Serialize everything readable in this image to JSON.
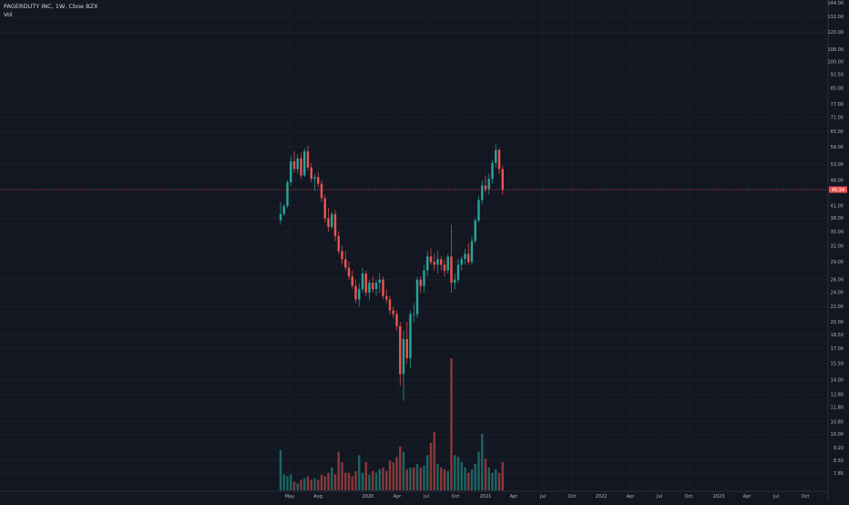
{
  "legend": {
    "title": "PAGERDUTY INC, 1W, Cboe BZX",
    "volume_label": "Vol"
  },
  "current_price_label": "45.34",
  "colors": {
    "background": "#131722",
    "grid": "#1e222d",
    "up": "#26a69a",
    "down": "#ef5350",
    "text": "#b2b5be",
    "price_line": "#ef5350"
  },
  "chart_data": {
    "type": "candlestick",
    "title": "PAGERDUTY INC, 1W, Cboe BZX",
    "y_scale": "log",
    "ylim": [
      7.0,
      144.0
    ],
    "y_ticks": [
      "144.00",
      "132.00",
      "120.00",
      "108.00",
      "100.00",
      "92.50",
      "85.00",
      "77.00",
      "71.00",
      "65.00",
      "59.00",
      "53.00",
      "48.00",
      "41.00",
      "38.00",
      "35.00",
      "32.00",
      "29.00",
      "26.00",
      "24.00",
      "22.00",
      "20.00",
      "18.50",
      "17.00",
      "15.50",
      "14.00",
      "12.80",
      "11.80",
      "10.80",
      "10.00",
      "9.20",
      "8.50",
      "7.85"
    ],
    "x_ticks": [
      "May",
      "Aug",
      "2020",
      "Apr",
      "Jul",
      "Oct",
      "2021",
      "Apr",
      "Jul",
      "Oct",
      "2022",
      "Apr",
      "Jul",
      "Oct",
      "2023",
      "Apr",
      "Jul",
      "Oct"
    ],
    "current_price": 45.34,
    "candles": [
      {
        "o": 37.5,
        "h": 42.0,
        "l": 36.5,
        "c": 39.0
      },
      {
        "o": 39.0,
        "h": 41.5,
        "l": 38.5,
        "c": 41.0
      },
      {
        "o": 41.0,
        "h": 48.0,
        "l": 40.5,
        "c": 47.5
      },
      {
        "o": 47.5,
        "h": 56.0,
        "l": 46.5,
        "c": 54.0
      },
      {
        "o": 54.0,
        "h": 57.5,
        "l": 50.5,
        "c": 51.5
      },
      {
        "o": 51.5,
        "h": 56.5,
        "l": 50.0,
        "c": 55.0
      },
      {
        "o": 55.0,
        "h": 57.0,
        "l": 48.5,
        "c": 49.5
      },
      {
        "o": 49.5,
        "h": 58.5,
        "l": 49.0,
        "c": 57.5
      },
      {
        "o": 57.5,
        "h": 59.5,
        "l": 51.0,
        "c": 52.0
      },
      {
        "o": 52.0,
        "h": 53.5,
        "l": 47.5,
        "c": 48.5
      },
      {
        "o": 48.5,
        "h": 50.0,
        "l": 45.0,
        "c": 49.0
      },
      {
        "o": 49.0,
        "h": 50.5,
        "l": 46.0,
        "c": 47.0
      },
      {
        "o": 47.0,
        "h": 48.0,
        "l": 42.0,
        "c": 43.0
      },
      {
        "o": 43.0,
        "h": 44.0,
        "l": 37.0,
        "c": 38.0
      },
      {
        "o": 38.0,
        "h": 40.5,
        "l": 35.0,
        "c": 36.0
      },
      {
        "o": 36.0,
        "h": 39.5,
        "l": 35.5,
        "c": 39.0
      },
      {
        "o": 39.0,
        "h": 40.0,
        "l": 33.0,
        "c": 34.0
      },
      {
        "o": 34.0,
        "h": 35.0,
        "l": 30.5,
        "c": 31.0
      },
      {
        "o": 31.0,
        "h": 32.0,
        "l": 28.5,
        "c": 29.5
      },
      {
        "o": 29.5,
        "h": 31.0,
        "l": 27.5,
        "c": 28.0
      },
      {
        "o": 28.0,
        "h": 29.0,
        "l": 26.0,
        "c": 26.5
      },
      {
        "o": 26.5,
        "h": 27.5,
        "l": 24.5,
        "c": 25.0
      },
      {
        "o": 25.0,
        "h": 26.0,
        "l": 22.5,
        "c": 23.0
      },
      {
        "o": 23.0,
        "h": 25.5,
        "l": 22.0,
        "c": 24.5
      },
      {
        "o": 24.5,
        "h": 28.0,
        "l": 24.0,
        "c": 27.0
      },
      {
        "o": 27.0,
        "h": 27.5,
        "l": 23.5,
        "c": 24.0
      },
      {
        "o": 24.0,
        "h": 26.0,
        "l": 23.0,
        "c": 25.5
      },
      {
        "o": 25.5,
        "h": 26.5,
        "l": 24.0,
        "c": 24.5
      },
      {
        "o": 24.5,
        "h": 26.0,
        "l": 23.5,
        "c": 25.5
      },
      {
        "o": 25.5,
        "h": 27.0,
        "l": 24.0,
        "c": 26.0
      },
      {
        "o": 26.0,
        "h": 26.5,
        "l": 23.0,
        "c": 23.5
      },
      {
        "o": 23.5,
        "h": 24.5,
        "l": 22.5,
        "c": 23.0
      },
      {
        "o": 23.0,
        "h": 23.5,
        "l": 21.0,
        "c": 21.5
      },
      {
        "o": 21.5,
        "h": 22.0,
        "l": 20.5,
        "c": 21.0
      },
      {
        "o": 21.0,
        "h": 21.5,
        "l": 19.0,
        "c": 19.5
      },
      {
        "o": 19.5,
        "h": 20.0,
        "l": 13.5,
        "c": 14.5
      },
      {
        "o": 14.5,
        "h": 19.0,
        "l": 12.3,
        "c": 18.0
      },
      {
        "o": 18.0,
        "h": 20.0,
        "l": 15.5,
        "c": 16.0
      },
      {
        "o": 16.0,
        "h": 21.5,
        "l": 15.0,
        "c": 21.0
      },
      {
        "o": 21.0,
        "h": 22.5,
        "l": 20.0,
        "c": 21.0
      },
      {
        "o": 21.0,
        "h": 26.5,
        "l": 20.5,
        "c": 26.0
      },
      {
        "o": 26.0,
        "h": 26.5,
        "l": 24.0,
        "c": 25.0
      },
      {
        "o": 25.0,
        "h": 28.5,
        "l": 24.0,
        "c": 27.5
      },
      {
        "o": 27.5,
        "h": 31.0,
        "l": 26.5,
        "c": 30.0
      },
      {
        "o": 30.0,
        "h": 31.5,
        "l": 28.5,
        "c": 29.0
      },
      {
        "o": 29.0,
        "h": 30.5,
        "l": 27.5,
        "c": 28.5
      },
      {
        "o": 28.5,
        "h": 31.0,
        "l": 27.0,
        "c": 29.5
      },
      {
        "o": 29.5,
        "h": 30.0,
        "l": 27.5,
        "c": 28.5
      },
      {
        "o": 28.5,
        "h": 29.5,
        "l": 26.5,
        "c": 27.5
      },
      {
        "o": 27.5,
        "h": 30.5,
        "l": 27.0,
        "c": 30.0
      },
      {
        "o": 30.0,
        "h": 36.5,
        "l": 24.0,
        "c": 25.5
      },
      {
        "o": 25.5,
        "h": 27.0,
        "l": 24.5,
        "c": 26.0
      },
      {
        "o": 26.0,
        "h": 29.5,
        "l": 25.5,
        "c": 28.5
      },
      {
        "o": 28.5,
        "h": 30.0,
        "l": 27.5,
        "c": 29.5
      },
      {
        "o": 29.5,
        "h": 31.5,
        "l": 28.5,
        "c": 30.5
      },
      {
        "o": 30.5,
        "h": 32.5,
        "l": 28.5,
        "c": 29.0
      },
      {
        "o": 29.0,
        "h": 34.0,
        "l": 28.5,
        "c": 33.0
      },
      {
        "o": 33.0,
        "h": 38.0,
        "l": 32.5,
        "c": 37.5
      },
      {
        "o": 37.5,
        "h": 43.5,
        "l": 37.0,
        "c": 42.5
      },
      {
        "o": 42.5,
        "h": 48.0,
        "l": 41.5,
        "c": 46.5
      },
      {
        "o": 46.5,
        "h": 49.5,
        "l": 44.5,
        "c": 45.5
      },
      {
        "o": 45.5,
        "h": 50.0,
        "l": 44.0,
        "c": 48.5
      },
      {
        "o": 48.5,
        "h": 54.5,
        "l": 47.0,
        "c": 53.5
      },
      {
        "o": 53.5,
        "h": 60.0,
        "l": 52.0,
        "c": 58.0
      },
      {
        "o": 58.0,
        "h": 58.5,
        "l": 50.0,
        "c": 51.5
      },
      {
        "o": 51.5,
        "h": 52.5,
        "l": 44.0,
        "c": 45.34
      }
    ],
    "volumes": [
      {
        "v": 2.3,
        "up": true
      },
      {
        "v": 0.9,
        "up": true
      },
      {
        "v": 0.8,
        "up": true
      },
      {
        "v": 0.9,
        "up": true
      },
      {
        "v": 0.5,
        "up": false
      },
      {
        "v": 0.4,
        "up": true
      },
      {
        "v": 0.6,
        "up": false
      },
      {
        "v": 0.7,
        "up": true
      },
      {
        "v": 0.8,
        "up": false
      },
      {
        "v": 0.6,
        "up": false
      },
      {
        "v": 0.7,
        "up": true
      },
      {
        "v": 0.6,
        "up": false
      },
      {
        "v": 0.9,
        "up": false
      },
      {
        "v": 0.8,
        "up": false
      },
      {
        "v": 1.0,
        "up": false
      },
      {
        "v": 1.3,
        "up": true
      },
      {
        "v": 0.9,
        "up": false
      },
      {
        "v": 2.2,
        "up": false
      },
      {
        "v": 1.6,
        "up": false
      },
      {
        "v": 1.0,
        "up": false
      },
      {
        "v": 1.0,
        "up": false
      },
      {
        "v": 0.8,
        "up": false
      },
      {
        "v": 1.1,
        "up": false
      },
      {
        "v": 2.0,
        "up": true
      },
      {
        "v": 1.0,
        "up": true
      },
      {
        "v": 1.6,
        "up": false
      },
      {
        "v": 0.9,
        "up": true
      },
      {
        "v": 1.1,
        "up": false
      },
      {
        "v": 1.0,
        "up": true
      },
      {
        "v": 1.2,
        "up": true
      },
      {
        "v": 1.3,
        "up": false
      },
      {
        "v": 1.1,
        "up": false
      },
      {
        "v": 1.7,
        "up": false
      },
      {
        "v": 1.6,
        "up": false
      },
      {
        "v": 1.9,
        "up": false
      },
      {
        "v": 2.5,
        "up": false
      },
      {
        "v": 2.2,
        "up": true
      },
      {
        "v": 1.2,
        "up": false
      },
      {
        "v": 1.3,
        "up": true
      },
      {
        "v": 1.3,
        "up": false
      },
      {
        "v": 1.5,
        "up": true
      },
      {
        "v": 1.3,
        "up": false
      },
      {
        "v": 1.4,
        "up": true
      },
      {
        "v": 2.0,
        "up": true
      },
      {
        "v": 2.7,
        "up": false
      },
      {
        "v": 3.3,
        "up": false
      },
      {
        "v": 1.5,
        "up": true
      },
      {
        "v": 1.3,
        "up": false
      },
      {
        "v": 1.2,
        "up": false
      },
      {
        "v": 1.1,
        "up": true
      },
      {
        "v": 7.5,
        "up": false
      },
      {
        "v": 2.0,
        "up": true
      },
      {
        "v": 1.9,
        "up": true
      },
      {
        "v": 1.6,
        "up": true
      },
      {
        "v": 1.3,
        "up": true
      },
      {
        "v": 1.0,
        "up": false
      },
      {
        "v": 1.2,
        "up": true
      },
      {
        "v": 1.5,
        "up": true
      },
      {
        "v": 2.2,
        "up": true
      },
      {
        "v": 3.2,
        "up": true
      },
      {
        "v": 1.8,
        "up": false
      },
      {
        "v": 1.3,
        "up": true
      },
      {
        "v": 1.0,
        "up": true
      },
      {
        "v": 1.2,
        "up": true
      },
      {
        "v": 1.0,
        "up": false
      },
      {
        "v": 1.6,
        "up": false
      }
    ]
  }
}
